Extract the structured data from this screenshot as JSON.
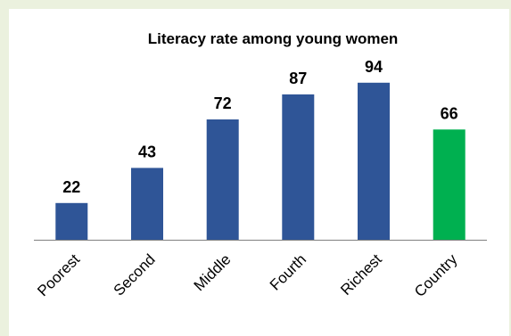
{
  "chart_data": {
    "type": "bar",
    "title": "Literacy rate among young women",
    "xlabel": "",
    "ylabel": "",
    "categories": [
      "Poorest",
      "Second",
      "Middle",
      "Fourth",
      "Richest",
      "Country"
    ],
    "values": [
      22,
      43,
      72,
      87,
      94,
      66
    ],
    "ylim": [
      0,
      100
    ],
    "grid": false,
    "legend": "none",
    "data_labels": true,
    "category_label_orientation": "rotated -45"
  },
  "colors": {
    "background": "#ebf1de",
    "plot_background": "#ffffff",
    "bar_default": "#2f5597",
    "bar_highlight": "#00b050",
    "axis": "#808080"
  },
  "highlight_category": "Country"
}
